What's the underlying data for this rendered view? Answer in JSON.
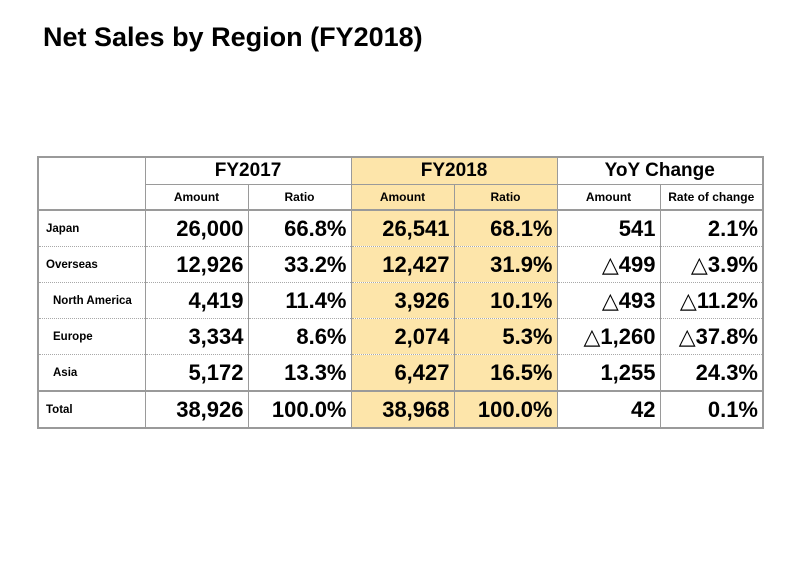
{
  "title": "Net Sales by Region (FY2018)",
  "chart_data": {
    "type": "table",
    "title": "Net Sales by Region (FY2018)",
    "column_groups": [
      "FY2017",
      "FY2018",
      "YoY Change"
    ],
    "sub_columns": [
      "Amount",
      "Ratio",
      "Amount",
      "Ratio",
      "Amount",
      "Rate of change"
    ],
    "highlight_color": "#fde5aa",
    "rows": [
      {
        "label": "Japan",
        "values": [
          "26,000",
          "66.8%",
          "26,541",
          "68.1%",
          "541",
          "2.1%"
        ]
      },
      {
        "label": "Overseas",
        "values": [
          "12,926",
          "33.2%",
          "12,427",
          "31.9%",
          "△499",
          "△3.9%"
        ]
      },
      {
        "label": "North America",
        "values": [
          "4,419",
          "11.4%",
          "3,926",
          "10.1%",
          "△493",
          "△11.2%"
        ]
      },
      {
        "label": "Europe",
        "values": [
          "3,334",
          "8.6%",
          "2,074",
          "5.3%",
          "△1,260",
          "△37.8%"
        ]
      },
      {
        "label": "Asia",
        "values": [
          "5,172",
          "13.3%",
          "6,427",
          "16.5%",
          "1,255",
          "24.3%"
        ]
      },
      {
        "label": "Total",
        "values": [
          "38,926",
          "100.0%",
          "38,968",
          "100.0%",
          "42",
          "0.1%"
        ]
      }
    ]
  }
}
